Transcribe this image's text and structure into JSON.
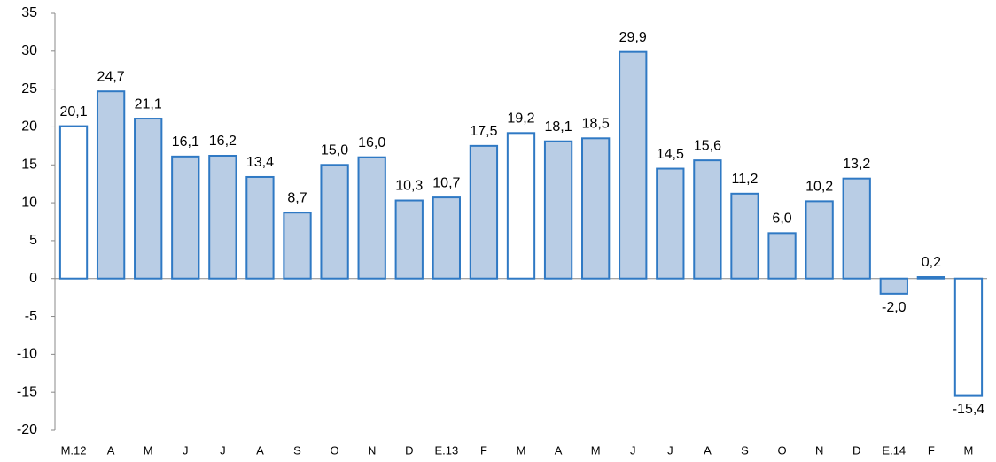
{
  "chart_data": {
    "type": "bar",
    "categories": [
      "M.12",
      "A",
      "M",
      "J",
      "J",
      "A",
      "S",
      "O",
      "N",
      "D",
      "E.13",
      "F",
      "M",
      "A",
      "M",
      "J",
      "J",
      "A",
      "S",
      "O",
      "N",
      "D",
      "E.14",
      "F",
      "M"
    ],
    "values": [
      20.1,
      24.7,
      21.1,
      16.1,
      16.2,
      13.4,
      8.7,
      15.0,
      16.0,
      10.3,
      10.7,
      17.5,
      19.2,
      18.1,
      18.5,
      29.9,
      14.5,
      15.6,
      11.2,
      6.0,
      10.2,
      13.2,
      -2.0,
      0.2,
      -15.4
    ],
    "value_labels": [
      "20,1",
      "24,7",
      "21,1",
      "16,1",
      "16,2",
      "13,4",
      "8,7",
      "15,0",
      "16,0",
      "10,3",
      "10,7",
      "17,5",
      "19,2",
      "18,1",
      "18,5",
      "29,9",
      "14,5",
      "15,6",
      "11,2",
      "6,0",
      "10,2",
      "13,2",
      "-2,0",
      "0,2",
      "-15,4"
    ],
    "colors": [
      "#ffffff",
      "#b9cde5",
      "#b9cde5",
      "#b9cde5",
      "#b9cde5",
      "#b9cde5",
      "#b9cde5",
      "#b9cde5",
      "#b9cde5",
      "#b9cde5",
      "#b9cde5",
      "#b9cde5",
      "#ffffff",
      "#b9cde5",
      "#b9cde5",
      "#b9cde5",
      "#b9cde5",
      "#b9cde5",
      "#b9cde5",
      "#b9cde5",
      "#b9cde5",
      "#b9cde5",
      "#b9cde5",
      "#b9cde5",
      "#ffffff"
    ],
    "edge_color": "#2f79c4",
    "ylim": [
      -20,
      35
    ],
    "yticks": [
      -20,
      -15,
      -10,
      -5,
      0,
      5,
      10,
      15,
      20,
      25,
      30,
      35
    ],
    "grid": false
  }
}
